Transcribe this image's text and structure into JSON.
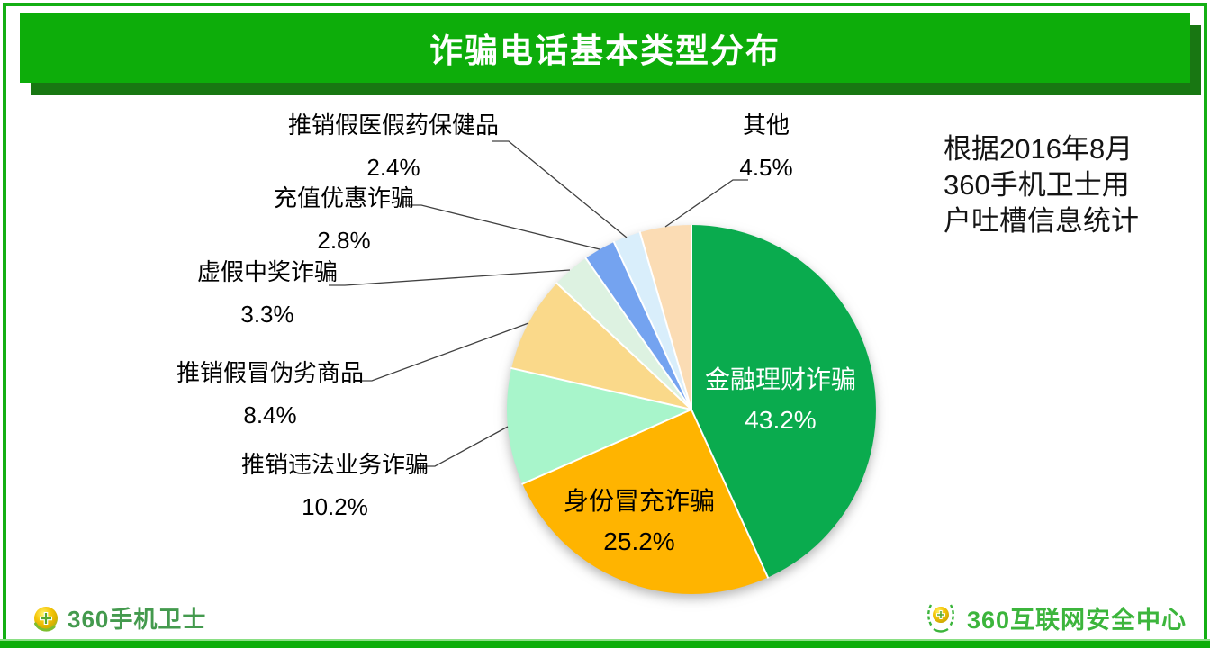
{
  "header": {
    "title": "诈骗电话基本类型分布"
  },
  "note": {
    "lines": [
      "根据2016年8月",
      "360手机卫士用",
      "户吐槽信息统计"
    ]
  },
  "footer": {
    "left_logo_text": "360手机卫士",
    "right_logo_text": "360互联网安全中心"
  },
  "colors": {
    "header_green": "#0DAD0A",
    "header_shadow_green": "#187712",
    "frame_green": "#14AF14",
    "bottom_bar_green": "#0DAD0A",
    "left_logo_green": "#449A4E",
    "right_logo_green": "#3CB53C"
  },
  "chart_data": {
    "type": "pie",
    "title": "诈骗电话基本类型分布",
    "direction": "clockwise",
    "start_angle_deg": 0,
    "legend_position": "none",
    "slices": [
      {
        "label": "金融理财诈骗",
        "value": 43.2,
        "pct_text": "43.2%",
        "color": "#0AAB4E",
        "label_position": "inside"
      },
      {
        "label": "身份冒充诈骗",
        "value": 25.2,
        "pct_text": "25.2%",
        "color": "#FFB400",
        "label_position": "inside"
      },
      {
        "label": "推销违法业务诈骗",
        "value": 10.2,
        "pct_text": "10.2%",
        "color": "#A8F5CB",
        "label_position": "outside"
      },
      {
        "label": "推销假冒伪劣商品",
        "value": 8.4,
        "pct_text": "8.4%",
        "color": "#FAD98A",
        "label_position": "outside"
      },
      {
        "label": "虚假中奖诈骗",
        "value": 3.3,
        "pct_text": "3.3%",
        "color": "#DDF2E1",
        "label_position": "outside"
      },
      {
        "label": "充值优惠诈骗",
        "value": 2.8,
        "pct_text": "2.8%",
        "color": "#74A3F0",
        "label_position": "outside"
      },
      {
        "label": "推销假医假药保健品",
        "value": 2.4,
        "pct_text": "2.4%",
        "color": "#D9EEFB",
        "label_position": "outside"
      },
      {
        "label": "其他",
        "value": 4.5,
        "pct_text": "4.5%",
        "color": "#FBDCB4",
        "label_position": "outside"
      }
    ]
  }
}
